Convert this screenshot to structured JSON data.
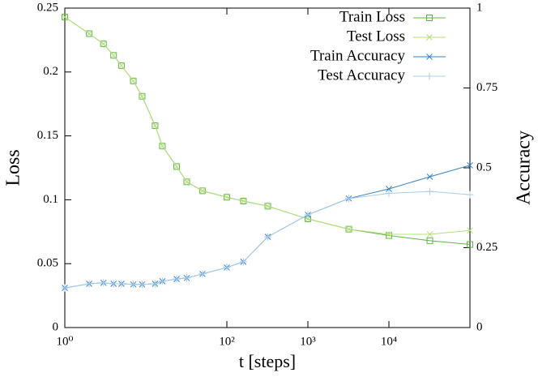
{
  "chart_data": {
    "type": "line",
    "xlabel": "t [steps]",
    "ylabel": "Loss",
    "y2label": "Accuracy",
    "xscale": "log",
    "x": [
      1,
      2,
      3,
      4,
      5,
      7,
      9,
      13,
      16,
      24,
      32,
      50,
      100,
      160,
      320,
      1000,
      3200,
      10000,
      32000,
      100000
    ],
    "xlim": [
      1,
      100000
    ],
    "xticks": [
      {
        "value": 1,
        "label": "10⁰"
      },
      {
        "value": 100,
        "label": "10²"
      },
      {
        "value": 1000,
        "label": "10³"
      },
      {
        "value": 10000,
        "label": "10⁴"
      }
    ],
    "ylim": [
      0,
      0.25
    ],
    "yticks": [
      0,
      0.05,
      0.1,
      0.15,
      0.2,
      0.25
    ],
    "y2lim": [
      0,
      1
    ],
    "y2ticks": [
      0,
      0.25,
      0.5,
      0.75,
      1
    ],
    "legend": "upper right",
    "series": [
      {
        "name": "Train Loss",
        "color": "#5fb446",
        "marker": "square",
        "values": [
          0.243,
          0.23,
          0.222,
          0.213,
          0.205,
          0.193,
          0.181,
          0.158,
          0.142,
          0.126,
          0.114,
          0.107,
          0.102,
          0.099,
          0.095,
          0.085,
          0.077,
          0.072,
          0.068,
          0.065
        ]
      },
      {
        "name": "Test Loss",
        "color": "#b5df7c",
        "marker": "x",
        "values": [
          0.243,
          0.23,
          0.222,
          0.213,
          0.205,
          0.193,
          0.181,
          0.158,
          0.142,
          0.126,
          0.114,
          0.107,
          0.102,
          0.099,
          0.095,
          0.085,
          0.077,
          0.073,
          0.073,
          0.076
        ]
      },
      {
        "name": "Train Accuracy",
        "color": "#3a82c4",
        "marker": "x",
        "axis": "y2",
        "values": [
          0.124,
          0.137,
          0.14,
          0.137,
          0.137,
          0.135,
          0.135,
          0.137,
          0.145,
          0.152,
          0.155,
          0.168,
          0.188,
          0.206,
          0.284,
          0.353,
          0.404,
          0.434,
          0.472,
          0.508
        ]
      },
      {
        "name": "Test Accuracy",
        "color": "#a8cceb",
        "marker": "plus",
        "axis": "y2",
        "values": [
          0.124,
          0.137,
          0.14,
          0.137,
          0.137,
          0.135,
          0.135,
          0.137,
          0.145,
          0.152,
          0.155,
          0.168,
          0.188,
          0.206,
          0.284,
          0.353,
          0.404,
          0.42,
          0.426,
          0.416
        ]
      }
    ]
  }
}
